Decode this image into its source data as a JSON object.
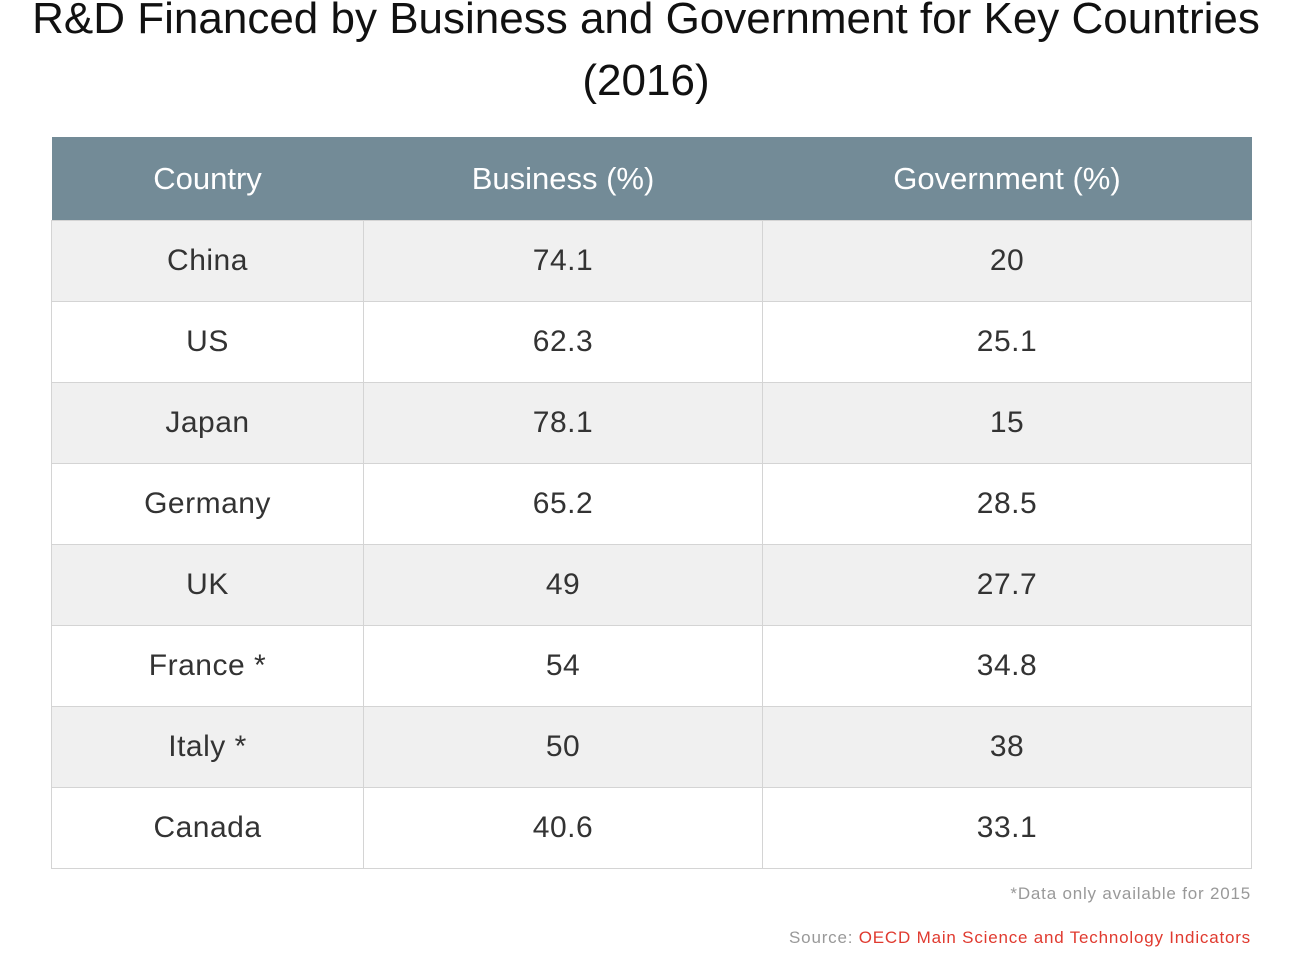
{
  "chart_data": {
    "type": "table",
    "title": "R&D Financed by Business and Government for Key Countries (2016)",
    "columns": [
      "Country",
      "Business (%)",
      "Government (%)"
    ],
    "rows": [
      {
        "country": "China",
        "business": "74.1",
        "government": "20"
      },
      {
        "country": "US",
        "business": "62.3",
        "government": "25.1"
      },
      {
        "country": "Japan",
        "business": "78.1",
        "government": "15"
      },
      {
        "country": "Germany",
        "business": "65.2",
        "government": "28.5"
      },
      {
        "country": "UK",
        "business": "49",
        "government": "27.7"
      },
      {
        "country": "France *",
        "business": "54",
        "government": "34.8"
      },
      {
        "country": "Italy *",
        "business": "50",
        "government": "38"
      },
      {
        "country": "Canada",
        "business": "40.6",
        "government": "33.1"
      }
    ],
    "footnote": "*Data only available for 2015",
    "source_label": "Source:",
    "source_name": "OECD Main Science and Technology Indicators"
  },
  "colors": {
    "header_bg": "#738b97",
    "header_text": "#ffffff",
    "row_alt_bg": "#f0f0f0",
    "source_link": "#e03a2f",
    "muted_text": "#999999"
  }
}
